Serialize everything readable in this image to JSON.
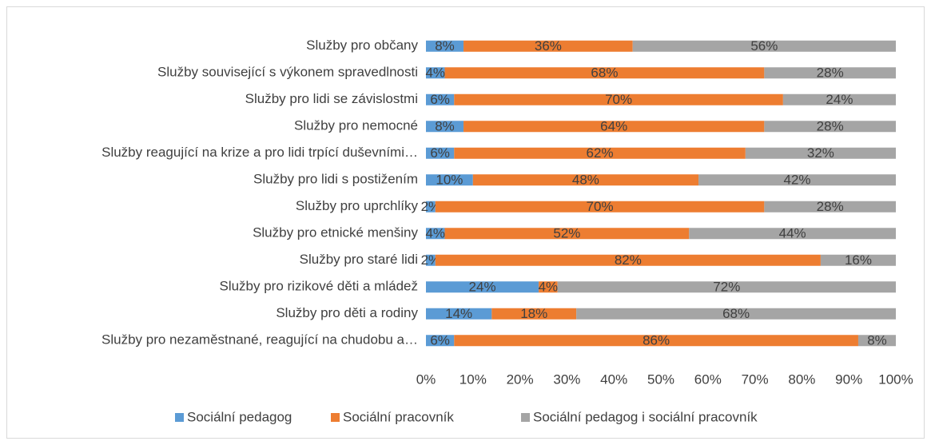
{
  "chart_data": {
    "type": "stacked_bar_horizontal",
    "categories": [
      "Služby pro občany",
      "Služby související s výkonem spravedlnosti",
      "Služby pro lidi se závislostmi",
      "Služby pro nemocné",
      "Služby reagující na krize a pro lidi trpící duševními…",
      "Služby pro lidi s postižením",
      "Služby pro uprchlíky",
      "Služby pro etnické menšiny",
      "Služby pro staré lidi",
      "Služby pro rizikové děti a mládež",
      "Služby pro děti a rodiny",
      "Služby pro nezaměstnané, reagující na chudobu a…"
    ],
    "series": [
      {
        "name": "Sociální pedagog",
        "color": "#5b9bd5",
        "values": [
          8,
          4,
          6,
          8,
          6,
          10,
          2,
          4,
          2,
          24,
          14,
          6
        ],
        "value_labels": [
          "8%",
          "4%",
          "6%",
          "8%",
          "6%",
          "10%",
          "2%",
          "4%",
          "2%",
          "24%",
          "14%",
          "6%"
        ]
      },
      {
        "name": "Sociální pracovník",
        "color": "#ed7d31",
        "values": [
          36,
          68,
          70,
          64,
          62,
          48,
          70,
          52,
          82,
          4,
          18,
          86
        ],
        "value_labels": [
          "36%",
          "68%",
          "70%",
          "64%",
          "62%",
          "48%",
          "70%",
          "52%",
          "82%",
          "4%",
          "18%",
          "86%"
        ]
      },
      {
        "name": "Sociální pedagog i sociální pracovník",
        "color": "#a5a5a5",
        "values": [
          56,
          28,
          24,
          28,
          32,
          42,
          28,
          44,
          16,
          72,
          68,
          8
        ],
        "value_labels": [
          "56%",
          "28%",
          "24%",
          "28%",
          "32%",
          "42%",
          "28%",
          "44%",
          "16%",
          "72%",
          "68%",
          "8%"
        ]
      }
    ],
    "xlim": [
      0,
      100
    ],
    "xticks": [
      {
        "value": 0,
        "label": "0%"
      },
      {
        "value": 10,
        "label": "10%"
      },
      {
        "value": 20,
        "label": "20%"
      },
      {
        "value": 30,
        "label": "30%"
      },
      {
        "value": 40,
        "label": "40%"
      },
      {
        "value": 50,
        "label": "50%"
      },
      {
        "value": 60,
        "label": "60%"
      },
      {
        "value": 70,
        "label": "70%"
      },
      {
        "value": 80,
        "label": "80%"
      },
      {
        "value": 90,
        "label": "90%"
      },
      {
        "value": 100,
        "label": "100%"
      }
    ],
    "legend": "bottom"
  }
}
